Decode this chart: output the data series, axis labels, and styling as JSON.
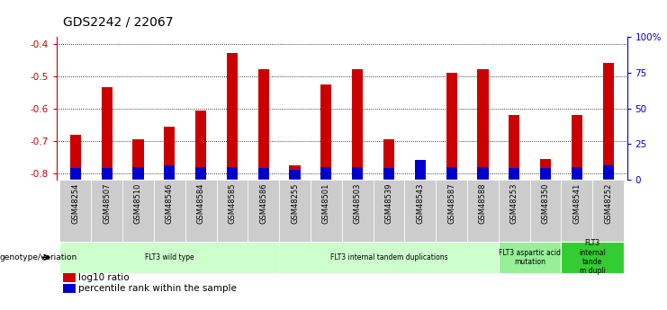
{
  "title": "GDS2242 / 22067",
  "samples": [
    "GSM48254",
    "GSM48507",
    "GSM48510",
    "GSM48546",
    "GSM48584",
    "GSM48585",
    "GSM48586",
    "GSM48255",
    "GSM48501",
    "GSM48503",
    "GSM48539",
    "GSM48543",
    "GSM48587",
    "GSM48588",
    "GSM48253",
    "GSM48350",
    "GSM48541",
    "GSM48252"
  ],
  "log10_ratio": [
    -0.68,
    -0.535,
    -0.695,
    -0.655,
    -0.605,
    -0.43,
    -0.48,
    -0.775,
    -0.525,
    -0.48,
    -0.695,
    -0.81,
    -0.49,
    -0.48,
    -0.62,
    -0.755,
    -0.62,
    -0.46
  ],
  "percentile_rank": [
    8,
    8,
    9,
    10,
    9,
    9,
    8,
    7,
    9,
    9,
    8,
    14,
    9,
    9,
    8,
    8,
    9,
    10
  ],
  "ylim_left": [
    -0.82,
    -0.38
  ],
  "ylim_right": [
    0,
    100
  ],
  "yticks_left": [
    -0.8,
    -0.7,
    -0.6,
    -0.5,
    -0.4
  ],
  "yticks_right": [
    0,
    25,
    50,
    75,
    100
  ],
  "ytick_labels_right": [
    "0",
    "25",
    "50",
    "75",
    "100%"
  ],
  "bar_color_red": "#CC0000",
  "bar_color_blue": "#0000CC",
  "background_color": "#ffffff",
  "axis_color_left": "#CC0000",
  "axis_color_right": "#0000CC",
  "tick_bg_color": "#cccccc",
  "groups": [
    {
      "label": "FLT3 wild type",
      "start": 0,
      "end": 7,
      "color": "#ccffcc"
    },
    {
      "label": "FLT3 internal tandem duplications",
      "start": 7,
      "end": 14,
      "color": "#ccffcc"
    },
    {
      "label": "FLT3 aspartic acid\nmutation",
      "start": 14,
      "end": 16,
      "color": "#99ee99"
    },
    {
      "label": "FLT3\ninternal\ntande\nm dupli",
      "start": 16,
      "end": 18,
      "color": "#33cc33"
    }
  ],
  "legend_label_red": "log10 ratio",
  "legend_label_blue": "percentile rank within the sample",
  "genotype_label": "genotype/variation",
  "bar_width": 0.35
}
